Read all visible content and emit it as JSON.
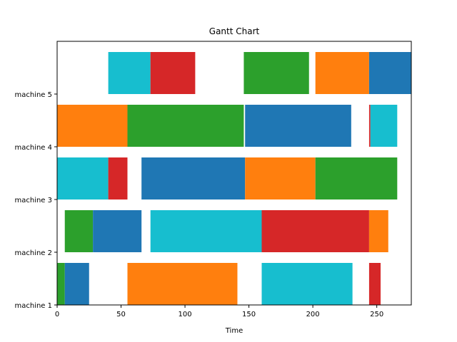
{
  "chart_data": {
    "type": "gantt",
    "title": "Gantt Chart",
    "xlabel": "Time",
    "xlim": [
      0,
      277
    ],
    "x_ticks": [
      0,
      50,
      100,
      150,
      200,
      250
    ],
    "y_categories": [
      "machine 1",
      "machine 2",
      "machine 3",
      "machine 4",
      "machine 5"
    ],
    "grid": false,
    "colors": {
      "blue": "#1f77b4",
      "orange": "#ff7f0e",
      "green": "#2ca02c",
      "red": "#d62728",
      "cyan": "#17becf"
    },
    "tasks": [
      {
        "machine": "machine 1",
        "start": 0,
        "end": 6,
        "color": "green"
      },
      {
        "machine": "machine 1",
        "start": 6,
        "end": 25,
        "color": "blue"
      },
      {
        "machine": "machine 1",
        "start": 55,
        "end": 141,
        "color": "orange"
      },
      {
        "machine": "machine 1",
        "start": 160,
        "end": 231,
        "color": "cyan"
      },
      {
        "machine": "machine 1",
        "start": 244,
        "end": 253,
        "color": "red"
      },
      {
        "machine": "machine 2",
        "start": 6,
        "end": 28,
        "color": "green"
      },
      {
        "machine": "machine 2",
        "start": 28,
        "end": 66,
        "color": "blue"
      },
      {
        "machine": "machine 2",
        "start": 73,
        "end": 160,
        "color": "cyan"
      },
      {
        "machine": "machine 2",
        "start": 160,
        "end": 244,
        "color": "red"
      },
      {
        "machine": "machine 2",
        "start": 244,
        "end": 259,
        "color": "orange"
      },
      {
        "machine": "machine 3",
        "start": 0,
        "end": 40,
        "color": "cyan"
      },
      {
        "machine": "machine 3",
        "start": 40,
        "end": 55,
        "color": "red"
      },
      {
        "machine": "machine 3",
        "start": 66,
        "end": 147,
        "color": "blue"
      },
      {
        "machine": "machine 3",
        "start": 147,
        "end": 202,
        "color": "orange"
      },
      {
        "machine": "machine 3",
        "start": 202,
        "end": 266,
        "color": "green"
      },
      {
        "machine": "machine 4",
        "start": 0,
        "end": 55,
        "color": "orange"
      },
      {
        "machine": "machine 4",
        "start": 55,
        "end": 146,
        "color": "green"
      },
      {
        "machine": "machine 4",
        "start": 147,
        "end": 230,
        "color": "blue"
      },
      {
        "machine": "machine 4",
        "start": 244,
        "end": 245,
        "color": "red"
      },
      {
        "machine": "machine 4",
        "start": 245,
        "end": 266,
        "color": "cyan"
      },
      {
        "machine": "machine 5",
        "start": 40,
        "end": 73,
        "color": "cyan"
      },
      {
        "machine": "machine 5",
        "start": 73,
        "end": 108,
        "color": "red"
      },
      {
        "machine": "machine 5",
        "start": 146,
        "end": 197,
        "color": "green"
      },
      {
        "machine": "machine 5",
        "start": 202,
        "end": 244,
        "color": "orange"
      },
      {
        "machine": "machine 5",
        "start": 244,
        "end": 277,
        "color": "blue"
      }
    ]
  }
}
